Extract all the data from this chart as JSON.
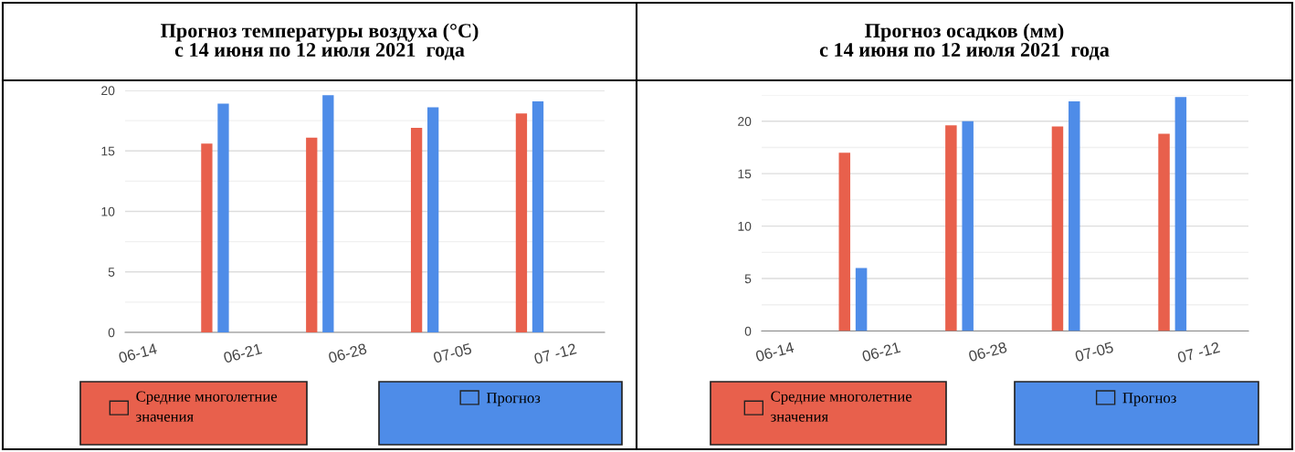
{
  "chart_data": [
    {
      "type": "bar",
      "title": "Прогноз температуры воздуха (°C)\nс 14 июня по 12 июля 2021  года",
      "x": [
        "2021-06-18",
        "2021-06-25",
        "2021-07-02",
        "2021-07-09"
      ],
      "series": [
        {
          "name": "Средние многолетние\nзначения",
          "color": "#e8604c",
          "values": [
            15.6,
            16.1,
            16.9,
            18.1
          ]
        },
        {
          "name": "Прогноз",
          "color": "#4e8ce8",
          "values": [
            18.9,
            19.6,
            18.6,
            19.1
          ]
        }
      ],
      "xlim": [
        "2021-06-12",
        "2021-07-14"
      ],
      "xticks": [
        {
          "value": "2021-06-14",
          "label": "06-14"
        },
        {
          "value": "2021-06-21",
          "label": "06-21"
        },
        {
          "value": "2021-06-28",
          "label": "06-28"
        },
        {
          "value": "2021-07-05",
          "label": "07-05"
        },
        {
          "value": "2021-07-12",
          "label": "07 -12"
        }
      ],
      "ylim": [
        0,
        20
      ],
      "yticks": [
        0,
        5,
        10,
        15,
        20
      ],
      "grid": "y",
      "legend": "bottom"
    },
    {
      "type": "bar",
      "title": "Прогноз осадков (мм)\nс 14 июня по 12 июля 2021  года",
      "x": [
        "2021-06-18",
        "2021-06-25",
        "2021-07-02",
        "2021-07-09"
      ],
      "series": [
        {
          "name": "Средние многолетние\nзначения",
          "color": "#e8604c",
          "values": [
            17.0,
            19.6,
            19.5,
            18.8
          ]
        },
        {
          "name": "Прогноз",
          "color": "#4e8ce8",
          "values": [
            6.0,
            20.0,
            21.9,
            22.3
          ]
        }
      ],
      "xlim": [
        "2021-06-12",
        "2021-07-14"
      ],
      "xticks": [
        {
          "value": "2021-06-14",
          "label": "06-14"
        },
        {
          "value": "2021-06-21",
          "label": "06-21"
        },
        {
          "value": "2021-06-28",
          "label": "06-28"
        },
        {
          "value": "2021-07-05",
          "label": "07-05"
        },
        {
          "value": "2021-07-12",
          "label": "07 -12"
        }
      ],
      "ylim": [
        0,
        22.5
      ],
      "yticks": [
        0,
        5,
        10,
        15,
        20
      ],
      "grid": "y",
      "legend": "bottom"
    }
  ]
}
